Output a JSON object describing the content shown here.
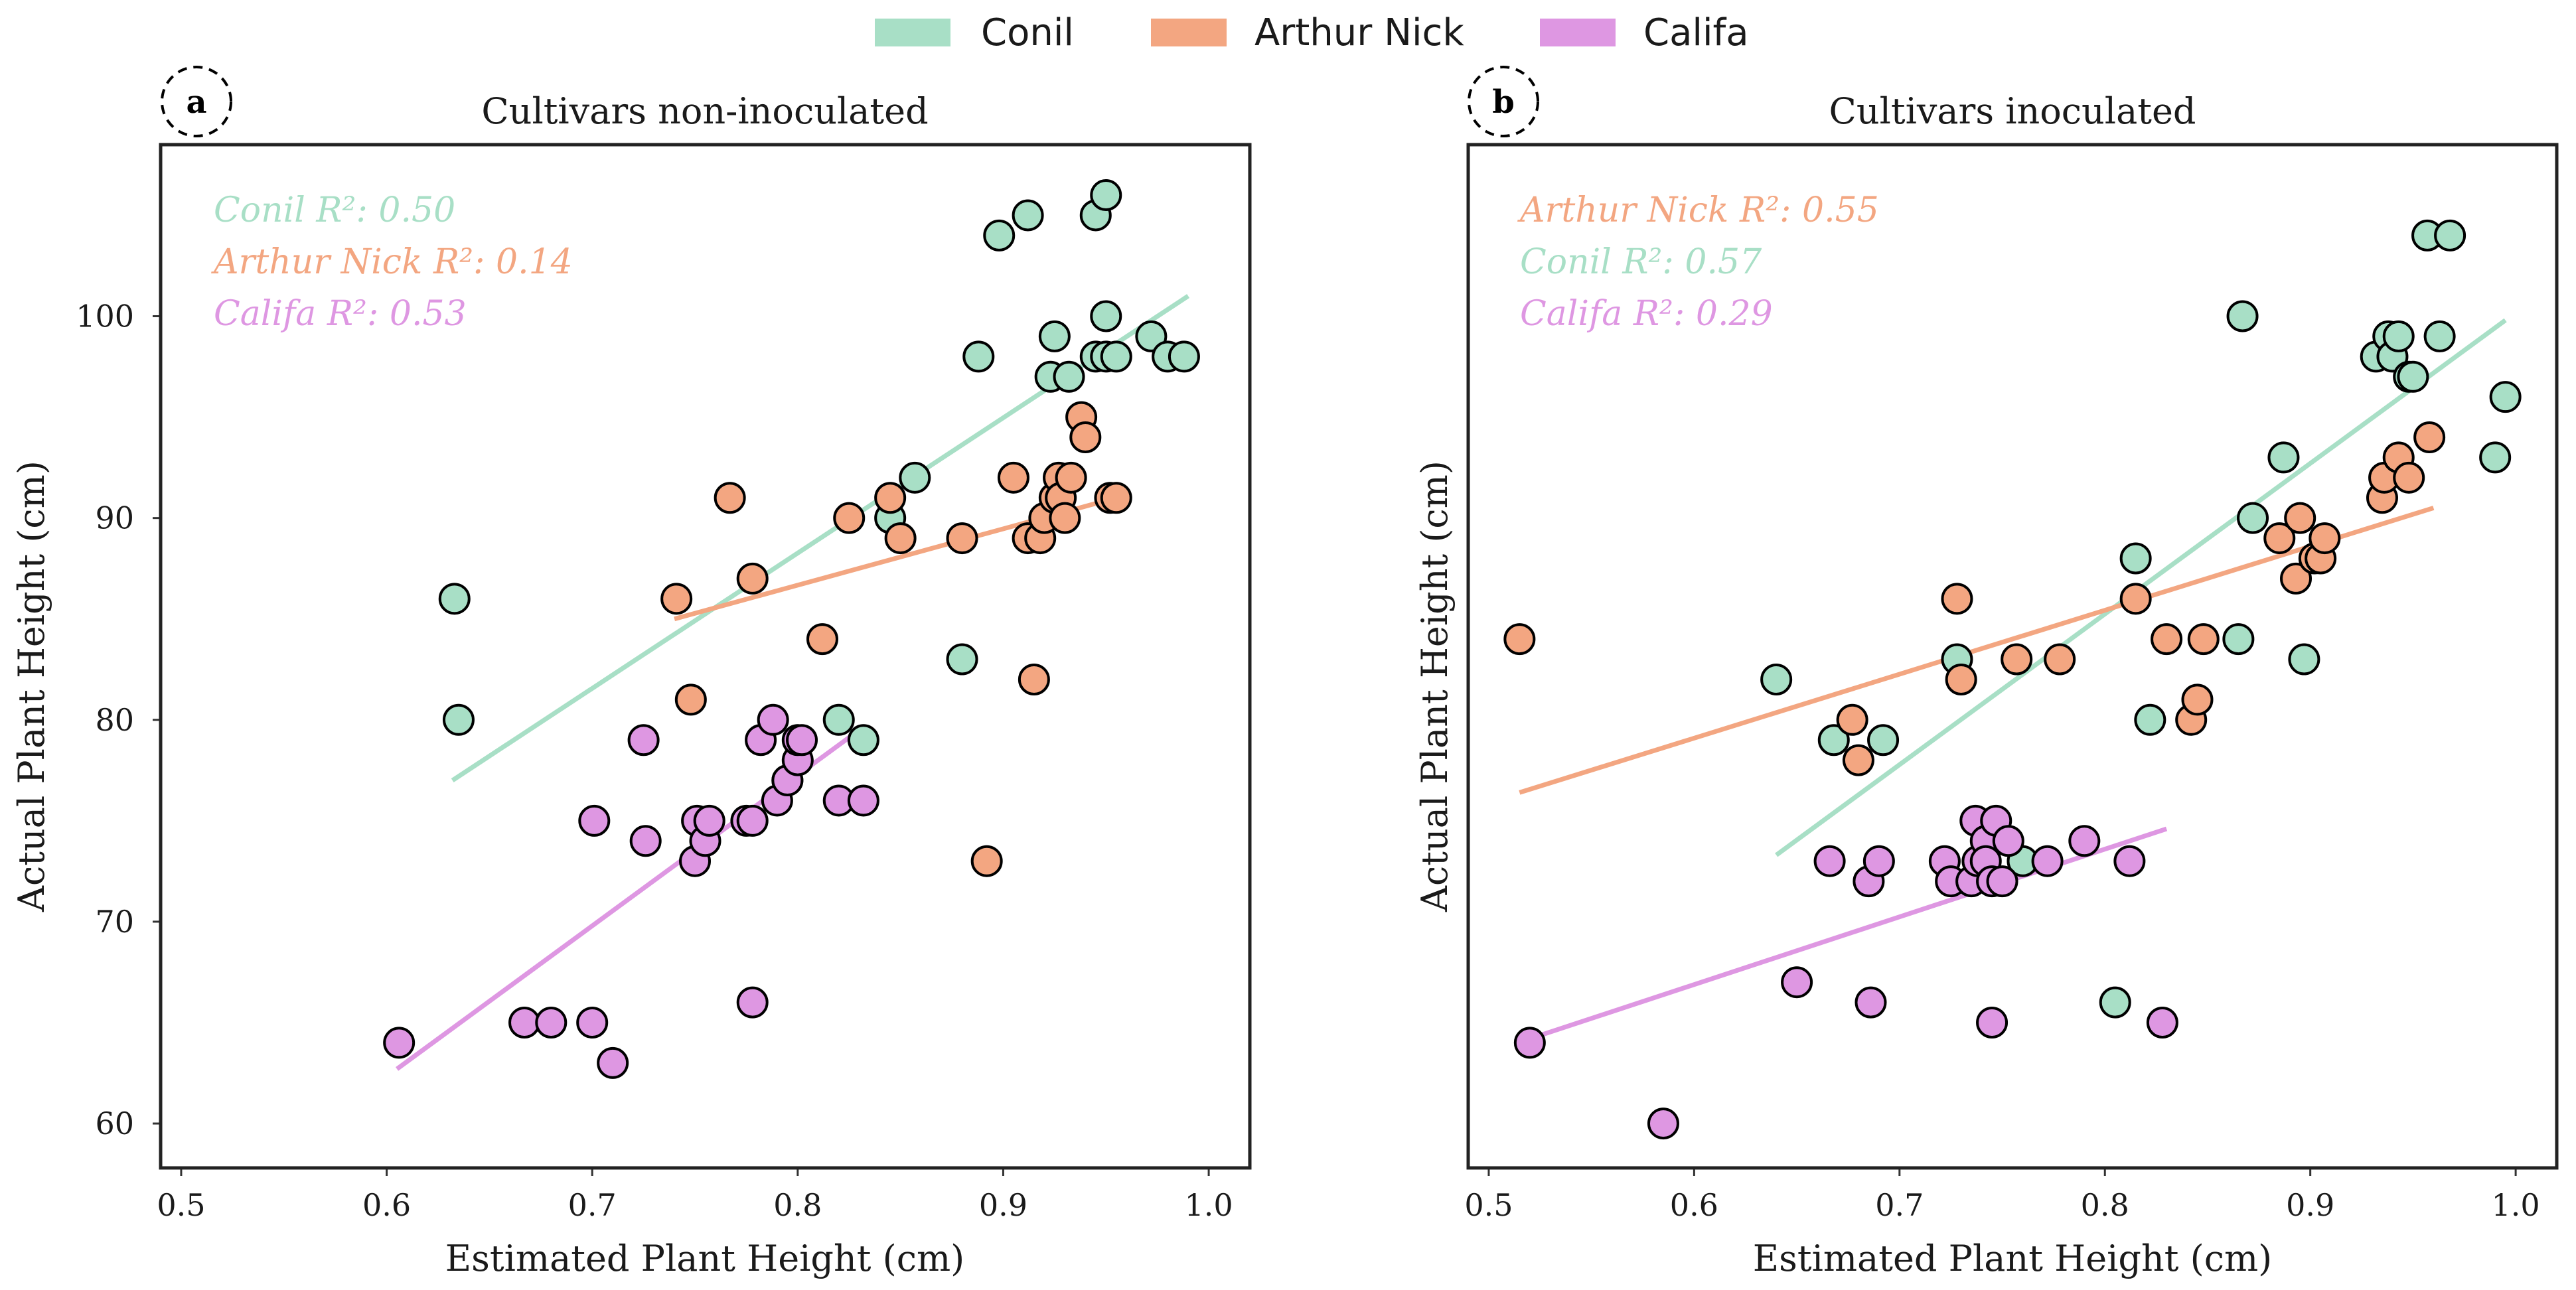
{
  "legend": [
    {
      "name": "Conil",
      "color": "#a8dfc6"
    },
    {
      "name": "Arthur Nick",
      "color": "#f3a681"
    },
    {
      "name": "Califa",
      "color": "#de97e2"
    }
  ],
  "chart_data": [
    {
      "type": "scatter",
      "panel": "a",
      "title": "Cultivars non-inoculated",
      "xlabel": "Estimated Plant Height (cm)",
      "ylabel": "Actual Plant Height (cm)",
      "xlim": [
        0.49,
        1.02
      ],
      "ylim": [
        57.8,
        108.5
      ],
      "xticks": [
        "0.5",
        "0.6",
        "0.7",
        "0.8",
        "0.9",
        "1.0"
      ],
      "yticks": [
        "60",
        "70",
        "80",
        "90",
        "100"
      ],
      "show_yticks": true,
      "annotations": [
        {
          "text": "Conil R²: 0.50",
          "series": "Conil"
        },
        {
          "text": "Arthur Nick R²: 0.14",
          "series": "Arthur Nick"
        },
        {
          "text": "Califa R²: 0.53",
          "series": "Califa"
        }
      ],
      "series": [
        {
          "name": "Conil",
          "color": "#a8dfc6",
          "fit": [
            [
              0.632,
              77.0
            ],
            [
              0.99,
              101.0
            ]
          ],
          "points": [
            [
              0.633,
              86
            ],
            [
              0.635,
              80
            ],
            [
              0.845,
              90
            ],
            [
              0.857,
              92
            ],
            [
              0.88,
              83
            ],
            [
              0.82,
              80
            ],
            [
              0.832,
              79
            ],
            [
              0.795,
              77
            ],
            [
              0.888,
              98
            ],
            [
              0.898,
              104
            ],
            [
              0.912,
              105
            ],
            [
              0.923,
              97
            ],
            [
              0.925,
              99
            ],
            [
              0.932,
              97
            ],
            [
              0.945,
              98
            ],
            [
              0.945,
              105
            ],
            [
              0.95,
              106
            ],
            [
              0.95,
              100
            ],
            [
              0.95,
              98
            ],
            [
              0.955,
              98
            ],
            [
              0.972,
              99
            ],
            [
              0.98,
              98
            ],
            [
              0.988,
              98
            ]
          ]
        },
        {
          "name": "Arthur Nick",
          "color": "#f3a681",
          "fit": [
            [
              0.74,
              85.0
            ],
            [
              0.955,
              91.0
            ]
          ],
          "points": [
            [
              0.741,
              86
            ],
            [
              0.748,
              81
            ],
            [
              0.767,
              91
            ],
            [
              0.778,
              87
            ],
            [
              0.812,
              84
            ],
            [
              0.825,
              90
            ],
            [
              0.845,
              91
            ],
            [
              0.85,
              89
            ],
            [
              0.88,
              89
            ],
            [
              0.892,
              73
            ],
            [
              0.905,
              92
            ],
            [
              0.912,
              89
            ],
            [
              0.915,
              82
            ],
            [
              0.918,
              89
            ],
            [
              0.92,
              90
            ],
            [
              0.925,
              91
            ],
            [
              0.927,
              92
            ],
            [
              0.928,
              91
            ],
            [
              0.93,
              90
            ],
            [
              0.933,
              92
            ],
            [
              0.938,
              95
            ],
            [
              0.94,
              94
            ],
            [
              0.952,
              91
            ],
            [
              0.955,
              91
            ]
          ]
        },
        {
          "name": "Califa",
          "color": "#de97e2",
          "fit": [
            [
              0.605,
              62.7
            ],
            [
              0.83,
              79.5
            ]
          ],
          "points": [
            [
              0.606,
              64
            ],
            [
              0.667,
              65
            ],
            [
              0.68,
              65
            ],
            [
              0.7,
              65
            ],
            [
              0.701,
              75
            ],
            [
              0.71,
              63
            ],
            [
              0.725,
              79
            ],
            [
              0.726,
              74
            ],
            [
              0.75,
              73
            ],
            [
              0.751,
              75
            ],
            [
              0.755,
              74
            ],
            [
              0.757,
              75
            ],
            [
              0.775,
              75
            ],
            [
              0.778,
              66
            ],
            [
              0.778,
              75
            ],
            [
              0.782,
              79
            ],
            [
              0.788,
              80
            ],
            [
              0.79,
              76
            ],
            [
              0.795,
              77
            ],
            [
              0.8,
              78
            ],
            [
              0.8,
              79
            ],
            [
              0.802,
              79
            ],
            [
              0.82,
              76
            ],
            [
              0.832,
              76
            ]
          ]
        }
      ]
    },
    {
      "type": "scatter",
      "panel": "b",
      "title": "Cultivars inoculated",
      "xlabel": "Estimated Plant Height (cm)",
      "ylabel": "Actual Plant Height (cm)",
      "xlim": [
        0.49,
        1.02
      ],
      "ylim": [
        57.8,
        108.5
      ],
      "xticks": [
        "0.5",
        "0.6",
        "0.7",
        "0.8",
        "0.9",
        "1.0"
      ],
      "yticks": [],
      "show_yticks": false,
      "annotations": [
        {
          "text": "Arthur Nick R²: 0.55",
          "series": "Arthur Nick"
        },
        {
          "text": "Conil R²: 0.57",
          "series": "Conil"
        },
        {
          "text": "Califa R²: 0.29",
          "series": "Califa"
        }
      ],
      "series": [
        {
          "name": "Conil",
          "color": "#a8dfc6",
          "fit": [
            [
              0.64,
              73.3
            ],
            [
              0.995,
              99.8
            ]
          ],
          "points": [
            [
              0.64,
              82
            ],
            [
              0.668,
              79
            ],
            [
              0.692,
              79
            ],
            [
              0.728,
              83
            ],
            [
              0.76,
              73
            ],
            [
              0.805,
              66
            ],
            [
              0.815,
              88
            ],
            [
              0.822,
              80
            ],
            [
              0.865,
              84
            ],
            [
              0.867,
              100
            ],
            [
              0.872,
              90
            ],
            [
              0.887,
              93
            ],
            [
              0.897,
              83
            ],
            [
              0.932,
              98
            ],
            [
              0.938,
              99
            ],
            [
              0.94,
              98
            ],
            [
              0.943,
              99
            ],
            [
              0.948,
              97
            ],
            [
              0.95,
              97
            ],
            [
              0.957,
              104
            ],
            [
              0.963,
              99
            ],
            [
              0.968,
              104
            ],
            [
              0.99,
              93
            ],
            [
              0.995,
              96
            ]
          ]
        },
        {
          "name": "Arthur Nick",
          "color": "#f3a681",
          "fit": [
            [
              0.515,
              76.4
            ],
            [
              0.96,
              90.5
            ]
          ],
          "points": [
            [
              0.515,
              84
            ],
            [
              0.677,
              80
            ],
            [
              0.68,
              78
            ],
            [
              0.728,
              86
            ],
            [
              0.73,
              82
            ],
            [
              0.757,
              83
            ],
            [
              0.778,
              83
            ],
            [
              0.815,
              86
            ],
            [
              0.83,
              84
            ],
            [
              0.842,
              80
            ],
            [
              0.845,
              81
            ],
            [
              0.848,
              84
            ],
            [
              0.885,
              89
            ],
            [
              0.893,
              87
            ],
            [
              0.895,
              90
            ],
            [
              0.902,
              88
            ],
            [
              0.905,
              88
            ],
            [
              0.907,
              89
            ],
            [
              0.935,
              91
            ],
            [
              0.936,
              92
            ],
            [
              0.943,
              93
            ],
            [
              0.948,
              92
            ],
            [
              0.958,
              94
            ]
          ]
        },
        {
          "name": "Califa",
          "color": "#de97e2",
          "fit": [
            [
              0.52,
              64.2
            ],
            [
              0.83,
              74.6
            ]
          ],
          "points": [
            [
              0.52,
              64
            ],
            [
              0.585,
              60
            ],
            [
              0.65,
              67
            ],
            [
              0.666,
              73
            ],
            [
              0.685,
              72
            ],
            [
              0.686,
              66
            ],
            [
              0.69,
              73
            ],
            [
              0.722,
              73
            ],
            [
              0.725,
              72
            ],
            [
              0.735,
              72
            ],
            [
              0.737,
              75
            ],
            [
              0.738,
              73
            ],
            [
              0.742,
              74
            ],
            [
              0.742,
              73
            ],
            [
              0.745,
              72
            ],
            [
              0.745,
              65
            ],
            [
              0.747,
              75
            ],
            [
              0.75,
              72
            ],
            [
              0.753,
              74
            ],
            [
              0.772,
              73
            ],
            [
              0.79,
              74
            ],
            [
              0.812,
              73
            ],
            [
              0.828,
              65
            ]
          ]
        }
      ]
    }
  ]
}
